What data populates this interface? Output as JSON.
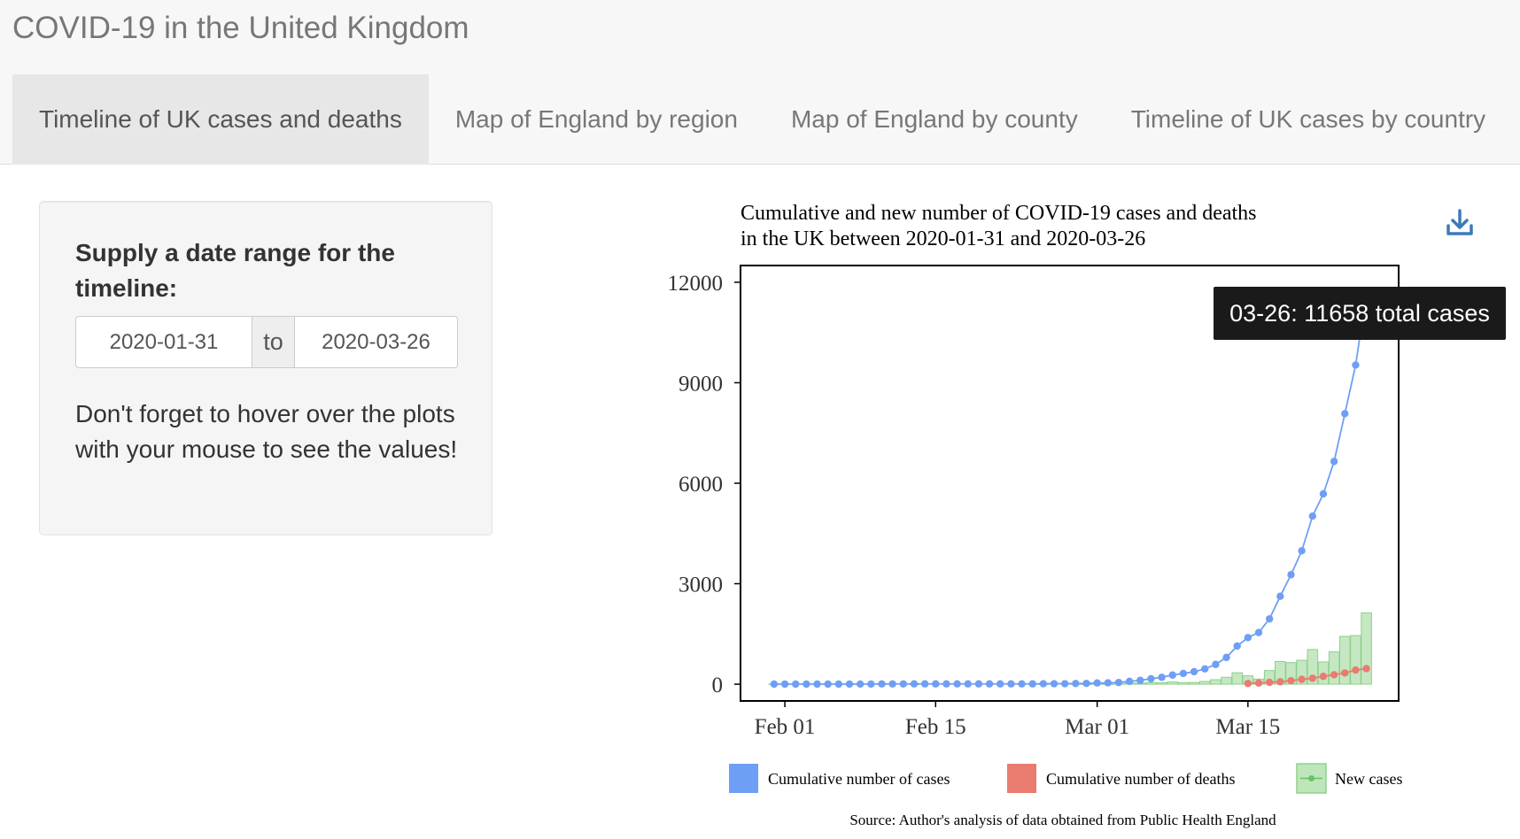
{
  "app": {
    "title": "COVID-19 in the United Kingdom"
  },
  "tabs": [
    {
      "label": "Timeline of UK cases and deaths",
      "active": true
    },
    {
      "label": "Map of England by region",
      "active": false
    },
    {
      "label": "Map of England by county",
      "active": false
    },
    {
      "label": "Timeline of UK cases by country",
      "active": false
    }
  ],
  "sidebar": {
    "label": "Supply a date range for the timeline:",
    "start_date": "2020-01-31",
    "separator": "to",
    "end_date": "2020-03-26",
    "note": "Don't forget to hover over the plots with your mouse to see the values!"
  },
  "tooltip": {
    "text": "03-26: 11658 total cases"
  },
  "icons": {
    "download": "download-icon"
  },
  "colors": {
    "cases": "#6f9ef5",
    "deaths": "#ea7b70",
    "new_cases": "#bfe6bb",
    "new_cases_border": "#8fd08c",
    "tooltip_bg": "#1a1a1a"
  },
  "chart_data": {
    "type": "line",
    "title": "Cumulative and new number of COVID-19 cases and deaths",
    "subtitle": "in the UK between 2020-01-31 and 2020-03-26",
    "xlabel": "",
    "ylabel": "",
    "x_start": "2020-01-31",
    "x_end": "2020-03-26",
    "xticks": [
      "Feb 01",
      "Feb 15",
      "Mar 01",
      "Mar 15"
    ],
    "xtick_dates": [
      "2020-02-01",
      "2020-02-15",
      "2020-03-01",
      "2020-03-15"
    ],
    "yticks": [
      0,
      3000,
      6000,
      9000,
      12000
    ],
    "ylim": [
      -500,
      12500
    ],
    "grid": false,
    "legend_position": "bottom",
    "series": [
      {
        "name": "Cumulative number of cases",
        "type": "line",
        "color": "#6f9ef5",
        "values": [
          2,
          2,
          2,
          2,
          2,
          2,
          2,
          3,
          3,
          3,
          8,
          8,
          8,
          9,
          9,
          9,
          9,
          9,
          9,
          9,
          9,
          9,
          9,
          9,
          9,
          13,
          13,
          13,
          20,
          23,
          36,
          40,
          51,
          85,
          115,
          163,
          206,
          273,
          321,
          373,
          456,
          590,
          798,
          1140,
          1391,
          1543,
          1950,
          2626,
          3269,
          3983,
          5018,
          5683,
          6650,
          8077,
          9529,
          11658
        ]
      },
      {
        "name": "Cumulative number of deaths",
        "type": "line",
        "color": "#ea7b70",
        "start_date": "2020-03-15",
        "values": [
          21,
          35,
          55,
          71,
          104,
          144,
          177,
          233,
          281,
          335,
          422,
          465
        ]
      },
      {
        "name": "New cases",
        "type": "bar",
        "color": "#bfe6bb",
        "values": [
          2,
          0,
          0,
          0,
          0,
          0,
          0,
          1,
          0,
          0,
          5,
          0,
          0,
          1,
          0,
          0,
          0,
          0,
          0,
          0,
          0,
          0,
          0,
          0,
          0,
          4,
          0,
          0,
          7,
          3,
          13,
          4,
          11,
          34,
          30,
          48,
          43,
          67,
          48,
          52,
          83,
          134,
          208,
          342,
          251,
          152,
          407,
          676,
          643,
          714,
          1035,
          665,
          967,
          1427,
          1452,
          2129
        ]
      }
    ],
    "source": "Source: Author's analysis of data obtained from Public Health England"
  }
}
